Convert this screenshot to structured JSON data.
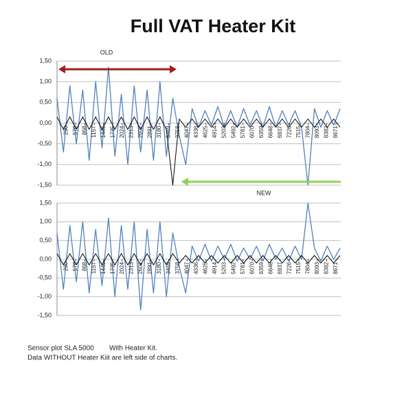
{
  "title": "Full VAT Heater Kit",
  "footer": [
    "Sensor plot SLA 5000        With Heater Kit.",
    "Data WITHOUT Heater Kiit are left side of charts."
  ],
  "chart_data": [
    {
      "type": "line",
      "annotations": [
        "OLD",
        "NEW"
      ],
      "x": [
        1,
        200,
        400,
        600,
        800,
        1000,
        1200,
        1400,
        1600,
        1800,
        2000,
        2200,
        2400,
        2600,
        2800,
        3000,
        3200,
        3400,
        3600,
        3800,
        4000,
        4200,
        4400,
        4600,
        4800,
        5000,
        5200,
        5400,
        5600,
        5800,
        6000,
        6200,
        6400,
        6600,
        6800,
        7000,
        7200,
        7400,
        7600,
        7800,
        8000,
        8200,
        8400,
        8600,
        8800
      ],
      "series": [
        {
          "name": "blue",
          "color": "#4f81bd",
          "values": [
            0.6,
            -0.7,
            0.9,
            -0.5,
            0.8,
            -0.9,
            1.0,
            -0.6,
            1.35,
            -0.8,
            0.7,
            -1.0,
            0.9,
            -0.7,
            0.8,
            -0.9,
            1.0,
            -0.8,
            0.6,
            -0.3,
            -1.0,
            0.35,
            -0.1,
            0.3,
            -0.05,
            0.4,
            -0.1,
            0.3,
            -0.1,
            0.35,
            -0.05,
            0.3,
            -0.1,
            0.4,
            -0.1,
            0.3,
            -0.05,
            0.3,
            -0.1,
            -1.5,
            0.35,
            -0.1,
            0.3,
            -0.05,
            0.35
          ]
        },
        {
          "name": "black",
          "color": "#000000",
          "values": [
            0.15,
            -0.15,
            0.15,
            -0.15,
            0.15,
            -0.15,
            0.15,
            -0.15,
            0.15,
            -0.15,
            0.15,
            -0.15,
            0.15,
            -0.15,
            0.15,
            -0.15,
            0.15,
            -0.15,
            -1.5,
            0.1,
            -0.1,
            0.1,
            -0.1,
            0.1,
            -0.1,
            0.1,
            -0.1,
            0.1,
            -0.1,
            0.1,
            -0.1,
            0.1,
            -0.1,
            0.1,
            -0.1,
            0.1,
            -0.1,
            0.1,
            -0.1,
            0.1,
            -0.1,
            0.1,
            -0.1,
            0.1,
            -0.1
          ]
        }
      ],
      "xlim": [
        1,
        8820
      ],
      "xticks": [
        290,
        579,
        868,
        1157,
        1446,
        1735,
        2024,
        2313,
        2602,
        2891,
        3180,
        3469,
        3758,
        4047,
        4336,
        4625,
        4914,
        5203,
        5492,
        5781,
        6070,
        6359,
        6648,
        6937,
        7226,
        7515,
        7804,
        8093,
        8382,
        8671
      ],
      "ylim": [
        -1.5,
        1.5
      ],
      "yticks": [
        {
          "value": 1.5,
          "label": "1,50"
        },
        {
          "value": 1,
          "label": "1,00"
        },
        {
          "value": 0.5,
          "label": "0,50"
        },
        {
          "value": 0,
          "label": "0,00"
        },
        {
          "value": -0.5,
          "label": "-0,50"
        },
        {
          "value": -1,
          "label": "-1,00"
        },
        {
          "value": -1.5,
          "label": "-1,50"
        }
      ],
      "grid": true
    },
    {
      "type": "line",
      "x": [
        1,
        200,
        400,
        600,
        800,
        1000,
        1200,
        1400,
        1600,
        1800,
        2000,
        2200,
        2400,
        2600,
        2800,
        3000,
        3200,
        3400,
        3600,
        3800,
        4000,
        4200,
        4400,
        4600,
        4800,
        5000,
        5200,
        5400,
        5600,
        5800,
        6000,
        6200,
        6400,
        6600,
        6800,
        7000,
        7200,
        7400,
        7600,
        7800,
        8000,
        8200,
        8400,
        8600,
        8800
      ],
      "series": [
        {
          "name": "blue",
          "color": "#4f81bd",
          "values": [
            0.7,
            -0.8,
            0.9,
            -0.6,
            1.0,
            -0.9,
            0.8,
            -0.7,
            1.1,
            -1.0,
            0.9,
            -0.8,
            1.0,
            -1.35,
            0.8,
            -0.9,
            1.0,
            -1.0,
            0.7,
            -0.2,
            -0.9,
            0.35,
            -0.05,
            0.4,
            -0.05,
            0.35,
            0.0,
            0.4,
            -0.05,
            0.3,
            0.0,
            0.35,
            -0.05,
            0.4,
            0.0,
            0.3,
            -0.05,
            0.35,
            0.0,
            1.5,
            0.3,
            -0.05,
            0.35,
            0.0,
            0.3
          ]
        },
        {
          "name": "black",
          "color": "#000000",
          "values": [
            0.15,
            -0.15,
            0.15,
            -0.15,
            0.15,
            -0.15,
            0.15,
            -0.15,
            0.15,
            -0.15,
            0.15,
            -0.15,
            0.15,
            -0.15,
            0.15,
            -0.15,
            0.15,
            -0.15,
            0.15,
            -0.1,
            0.1,
            -0.1,
            0.1,
            -0.1,
            0.1,
            -0.1,
            0.1,
            -0.1,
            0.1,
            -0.1,
            0.1,
            -0.1,
            0.1,
            -0.1,
            0.1,
            -0.1,
            0.1,
            -0.1,
            0.1,
            -0.1,
            0.1,
            -0.1,
            0.1,
            -0.1,
            0.1
          ]
        }
      ],
      "xlim": [
        1,
        8820
      ],
      "xticks": [
        290,
        579,
        868,
        1157,
        1446,
        1735,
        2024,
        2313,
        2602,
        2891,
        3180,
        3469,
        3758,
        4047,
        4336,
        4625,
        4914,
        5203,
        5492,
        5781,
        6070,
        6359,
        6648,
        6937,
        7226,
        7515,
        7804,
        8093,
        8382,
        8671
      ],
      "ylim": [
        -1.5,
        1.5
      ],
      "yticks": [
        {
          "value": 1.5,
          "label": "1,50"
        },
        {
          "value": 1,
          "label": "1,00"
        },
        {
          "value": 0.5,
          "label": "0,50"
        },
        {
          "value": 0,
          "label": "0,00"
        },
        {
          "value": -0.5,
          "label": "-0,50"
        },
        {
          "value": -1,
          "label": "-1,00"
        },
        {
          "value": -1.5,
          "label": "-1,50"
        }
      ],
      "grid": true
    }
  ]
}
